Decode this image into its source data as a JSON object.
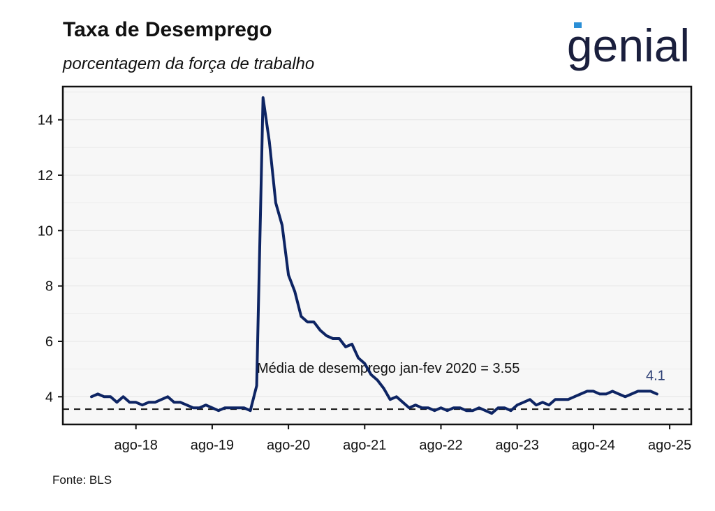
{
  "header": {
    "title": "Taxa de Desemprego",
    "subtitle": "porcentagem da força de trabalho"
  },
  "logo": {
    "text": "genial",
    "colors": {
      "main": "#1a1f3d",
      "accent": "#2b8fd6"
    }
  },
  "footer": {
    "source": "Fonte: BLS"
  },
  "chart_data": {
    "type": "line",
    "title": "Taxa de Desemprego",
    "subtitle": "porcentagem da força de trabalho",
    "xlabel": "",
    "ylabel": "",
    "x_tick_labels": [
      "ago-18",
      "ago-19",
      "ago-20",
      "ago-21",
      "ago-22",
      "ago-23",
      "ago-24",
      "ago-25"
    ],
    "ylim": [
      3.0,
      15.2
    ],
    "y_ticks": [
      4,
      6,
      8,
      10,
      12,
      14
    ],
    "grid": "horizontal",
    "line_color": "#0d2463",
    "series": [
      {
        "start_month": "2018-01",
        "values": [
          4.0,
          4.1,
          4.0,
          4.0,
          3.8,
          4.0,
          3.8,
          3.8,
          3.7,
          3.8,
          3.8,
          3.9,
          4.0,
          3.8,
          3.8,
          3.7,
          3.6,
          3.6,
          3.7,
          3.6,
          3.5,
          3.6,
          3.6,
          3.6,
          3.6,
          3.5,
          4.4,
          14.8,
          13.2,
          11.0,
          10.2,
          8.4,
          7.8,
          6.9,
          6.7,
          6.7,
          6.4,
          6.2,
          6.1,
          6.1,
          5.8,
          5.9,
          5.4,
          5.2,
          4.8,
          4.6,
          4.3,
          3.9,
          4.0,
          3.8,
          3.6,
          3.7,
          3.6,
          3.6,
          3.5,
          3.6,
          3.5,
          3.6,
          3.6,
          3.5,
          3.5,
          3.6,
          3.5,
          3.4,
          3.6,
          3.6,
          3.5,
          3.7,
          3.8,
          3.9,
          3.7,
          3.8,
          3.7,
          3.9,
          3.9,
          3.9,
          4.0,
          4.1,
          4.2,
          4.2,
          4.1,
          4.1,
          4.2,
          4.1,
          4.0,
          4.1,
          4.2,
          4.2,
          4.2,
          4.1
        ]
      }
    ],
    "reference_line": {
      "value": 3.55,
      "style": "dashed",
      "label": "Média de desemprego jan-fev 2020 =  3.55"
    },
    "last_value_label": "4.1"
  }
}
